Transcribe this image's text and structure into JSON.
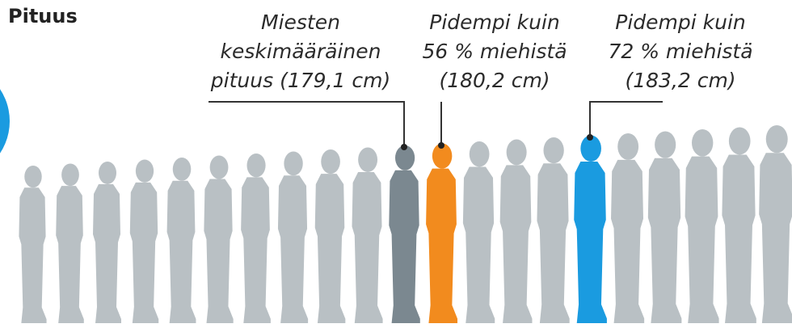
{
  "title": "Pituus",
  "annotations": [
    {
      "lines": [
        "Miesten",
        "keskimääräinen",
        "pituus (179,1 cm)"
      ]
    },
    {
      "lines": [
        "Pidempi kuin",
        "56 % miehistä",
        "(180,2 cm)"
      ]
    },
    {
      "lines": [
        "Pidempi kuin",
        "72 % miehistä",
        "(183,2 cm)"
      ]
    }
  ]
}
